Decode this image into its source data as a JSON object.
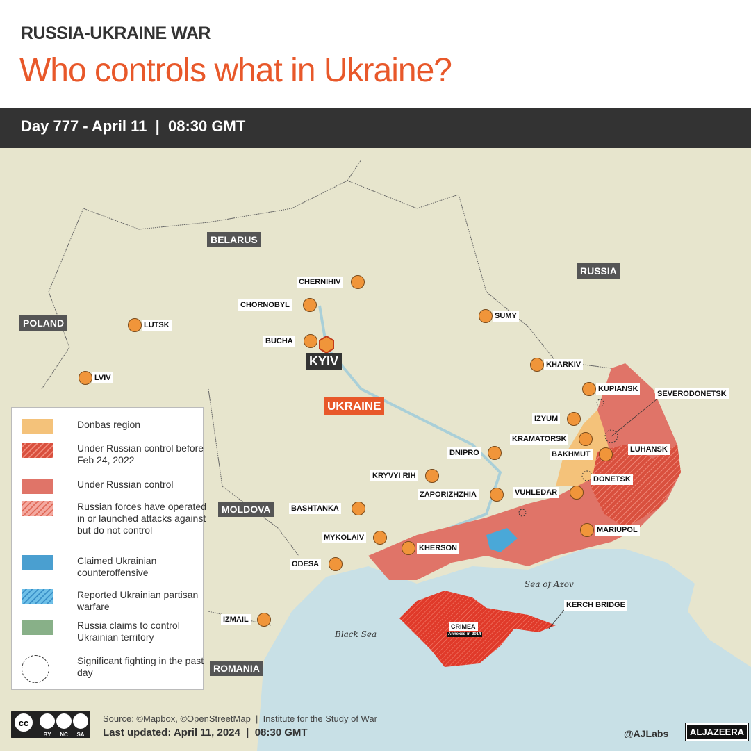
{
  "header": {
    "kicker": "RUSSIA-UKRAINE WAR",
    "title": "Who controls what in Ukraine?",
    "day_bar": "Day 777 - April 11  |  08:30 GMT"
  },
  "countries": [
    "BELARUS",
    "RUSSIA",
    "POLAND",
    "UKRAINE",
    "MOLDOVA",
    "ROMANIA"
  ],
  "seas": [
    "Sea of Azov",
    "Black Sea"
  ],
  "capital": "KYIV",
  "cities": [
    "CHERNIHIV",
    "CHORNOBYL",
    "SUMY",
    "LUTSK",
    "BUCHA",
    "KHARKIV",
    "LVIV",
    "KUPIANSK",
    "IZYUM",
    "KRAMATORSK",
    "DNIPRO",
    "BAKHMUT",
    "KRYVYI RIH",
    "ZAPORIZHZHIA",
    "VUHLEDAR",
    "BASHTANKA",
    "MARIUPOL",
    "MYKOLAIV",
    "KHERSON",
    "ODESA",
    "IZMAIL"
  ],
  "callouts": [
    "SEVERODONETSK",
    "LUHANSK",
    "DONETSK",
    "KERCH BRIDGE"
  ],
  "crimea": {
    "name": "CRIMEA",
    "note": "Annexed in 2014"
  },
  "legend": [
    {
      "label": "Donbas region",
      "color": "#f4c27a"
    },
    {
      "label": "Under Russian control before Feb 24, 2022",
      "color": "#e06a58",
      "pattern": "hatch"
    },
    {
      "label": "Under Russian control",
      "color": "#e07468"
    },
    {
      "label": "Russian forces have operated in or launched attacks against but do not control",
      "color": "#f4a9a0",
      "pattern": "hatch"
    },
    {
      "label": "Claimed Ukrainian counteroffensive",
      "color": "#4a9fd0"
    },
    {
      "label": "Reported Ukrainian partisan warfare",
      "color": "#6ec0e8",
      "pattern": "hatch"
    },
    {
      "label": "Russia claims to control Ukrainian territory",
      "color": "#88b088"
    },
    {
      "label": "Significant fighting in the past day",
      "pattern": "dashed-circle"
    }
  ],
  "footer": {
    "source": "Source: ©Mapbox, ©OpenStreetMap  |  Institute for the Study of War",
    "updated": "Last updated: April 11, 2024  |  08:30 GMT",
    "license": [
      "BY",
      "NC",
      "SA"
    ],
    "handle": "@AJLabs",
    "brand": "ALJAZEERA"
  },
  "colors": {
    "accent": "#e8582a",
    "russian_control": "#e07468",
    "crimea": "#e03a2a",
    "land": "#e7e5cd",
    "sea": "#c8e0e6"
  }
}
